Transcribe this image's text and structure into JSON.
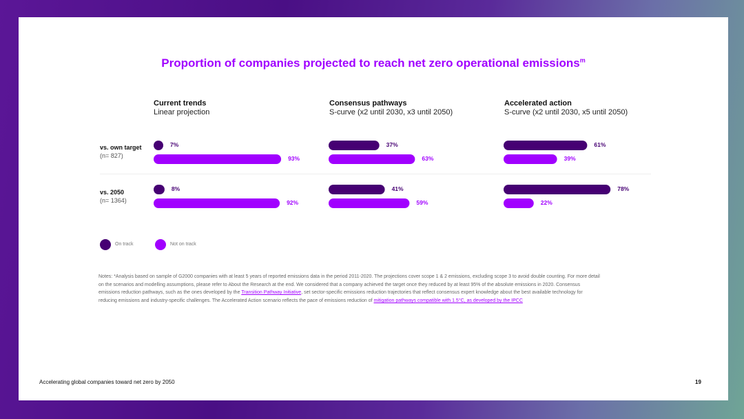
{
  "slide": {
    "title": "Proportion of companies projected to reach net zero operational emissions",
    "title_superscript": "m",
    "footer_text": "Accelerating global companies toward net zero by 2050",
    "page_number": "19"
  },
  "colors": {
    "on_track": "#460073",
    "not_on_track": "#a100ff"
  },
  "chart_data": {
    "type": "bar",
    "title": "Proportion of companies projected to reach net zero operational emissions",
    "orientation": "horizontal",
    "unit": "%",
    "value_range": [
      0,
      100
    ],
    "legend": [
      {
        "name": "On track",
        "color": "#460073"
      },
      {
        "name": "Not on track",
        "color": "#a100ff"
      }
    ],
    "legend_placement": "bottom-left",
    "grid": false,
    "panels": [
      {
        "title": "Current trends",
        "subtitle": "Linear projection"
      },
      {
        "title": "Consensus pathways",
        "subtitle": "S-curve (x2 until 2030, x3 until 2050)"
      },
      {
        "title": "Accelerated action",
        "subtitle": "S-curve (x2 until 2030, x5 until 2050)"
      }
    ],
    "rows": [
      {
        "label": "vs. own target",
        "sublabel": "(n= 827)"
      },
      {
        "label": "vs. 2050",
        "sublabel": "(n= 1364)"
      }
    ],
    "values": [
      [
        {
          "on_track": 7,
          "not_on_track": 93
        },
        {
          "on_track": 8,
          "not_on_track": 92
        }
      ],
      [
        {
          "on_track": 37,
          "not_on_track": 63
        },
        {
          "on_track": 41,
          "not_on_track": 59
        }
      ],
      [
        {
          "on_track": 61,
          "not_on_track": 39
        },
        {
          "on_track": 78,
          "not_on_track": 22
        }
      ]
    ],
    "value_labels": [
      [
        {
          "on_track": "7%",
          "not_on_track": "93%"
        },
        {
          "on_track": "8%",
          "not_on_track": "92%"
        }
      ],
      [
        {
          "on_track": "37%",
          "not_on_track": "63%"
        },
        {
          "on_track": "41%",
          "not_on_track": "59%"
        }
      ],
      [
        {
          "on_track": "61%",
          "not_on_track": "39%"
        },
        {
          "on_track": "78%",
          "not_on_track": "22%"
        }
      ]
    ]
  },
  "notes": {
    "p1": "Notes: ",
    "p2": "*Analysis based on sample of G2000 companies with at least 5 years of reported emissions data in the period 2011-2020. The projections cover scope 1 & 2 emissions, excluding scope 3 to avoid double counting. For more detail on the scenarios and modelling assumptions, please refer to About the Research at the end. We considered that a company achieved the target once they reduced by at least 95% of the absolute emissions in 2020. Consensus emissions reduction pathways, such as the ones developed by the ",
    "link1": "Transition Pathway Initiative",
    "p3": ", set sector-specific emissions reduction trajectories that reflect consensus expert knowledge about the best available technology for reducing emissions and industry-specific challenges. The Accelerated Action scenario reflects the pace of emissions reduction of ",
    "link2": "mitigation pathways compatible with 1.5°C, as developed by the IPCC"
  }
}
